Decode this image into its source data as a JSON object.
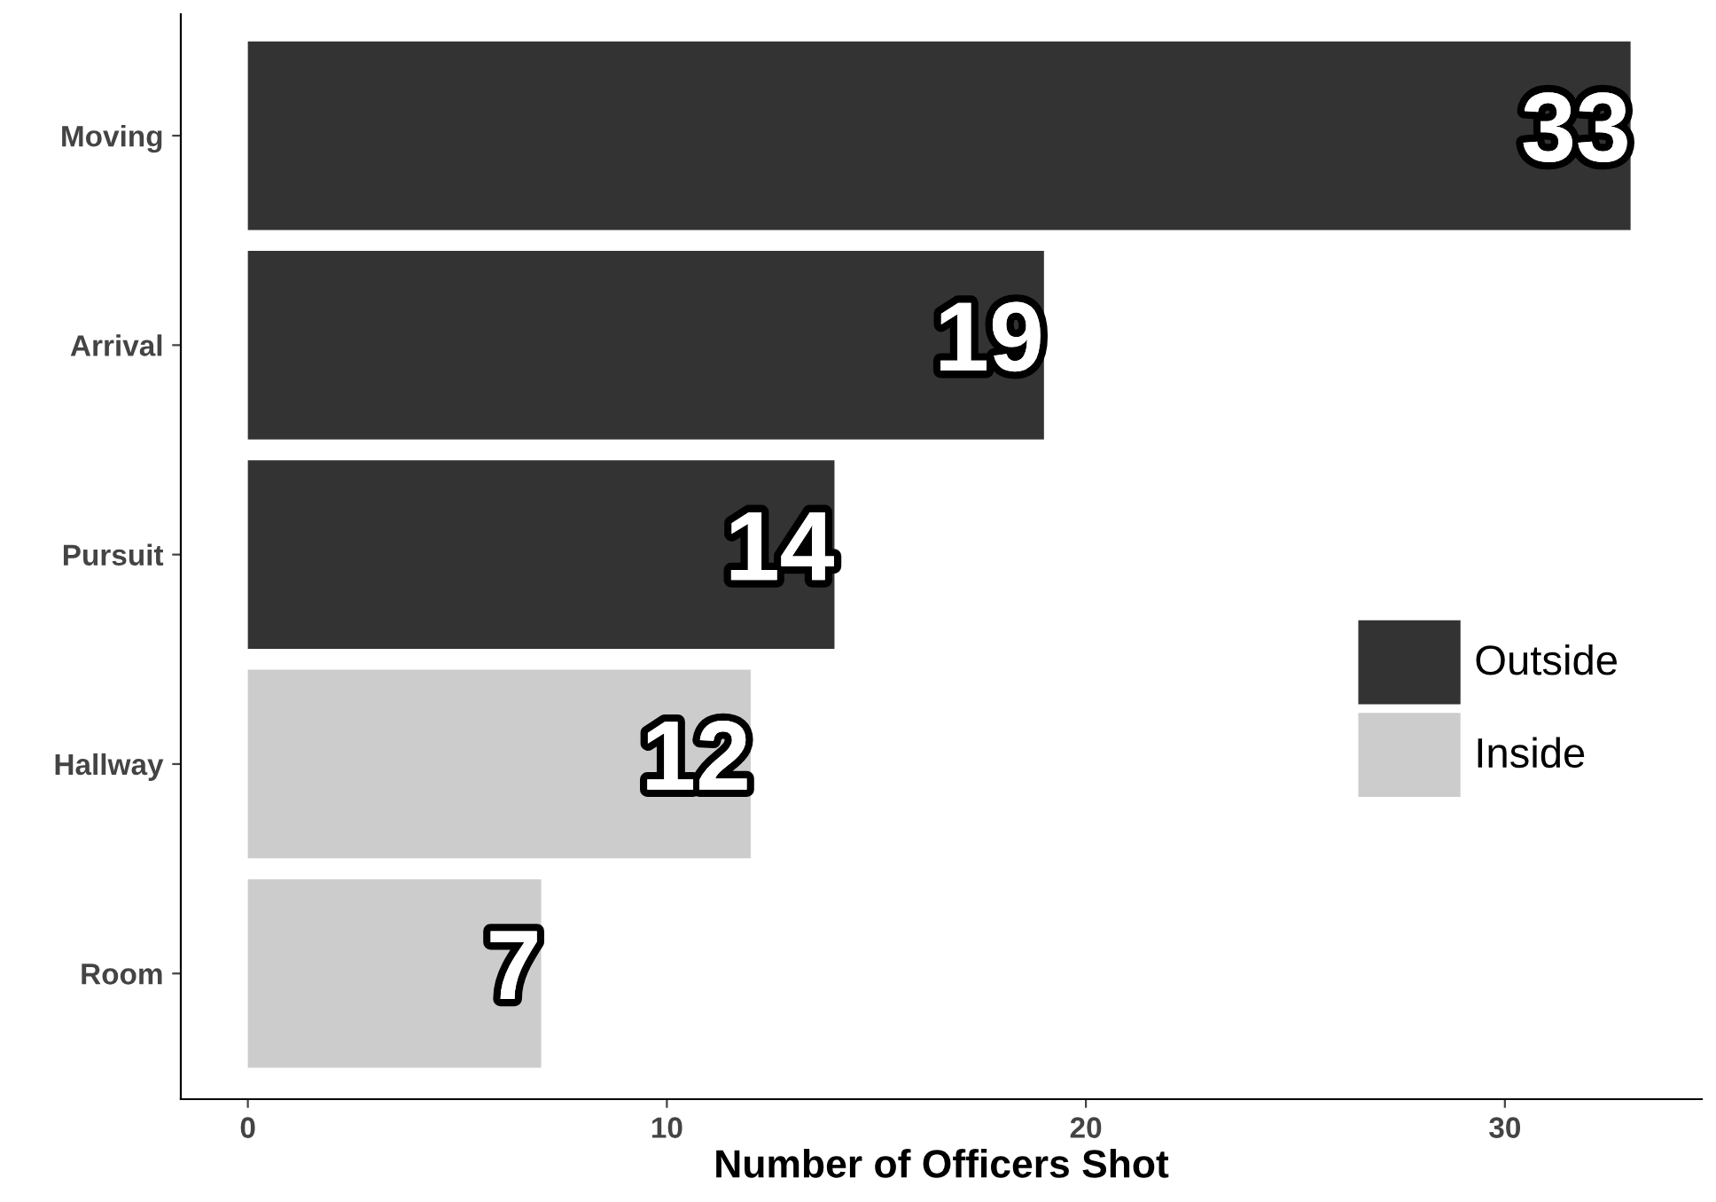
{
  "chart_data": {
    "type": "bar",
    "orientation": "horizontal",
    "xlabel": "Number of Officers Shot",
    "categories": [
      "Moving",
      "Arrival",
      "Pursuit",
      "Hallway",
      "Room"
    ],
    "series": [
      {
        "name": "Outside",
        "color": "#333333",
        "values": [
          33,
          19,
          14,
          null,
          null
        ]
      },
      {
        "name": "Inside",
        "color": "#cccccc",
        "values": [
          null,
          null,
          null,
          12,
          7
        ]
      }
    ],
    "xlim": [
      -1.6,
      34.7
    ],
    "xticks": [
      0,
      10,
      20,
      30
    ],
    "grid": false,
    "legend": "right",
    "data_labels": true
  }
}
